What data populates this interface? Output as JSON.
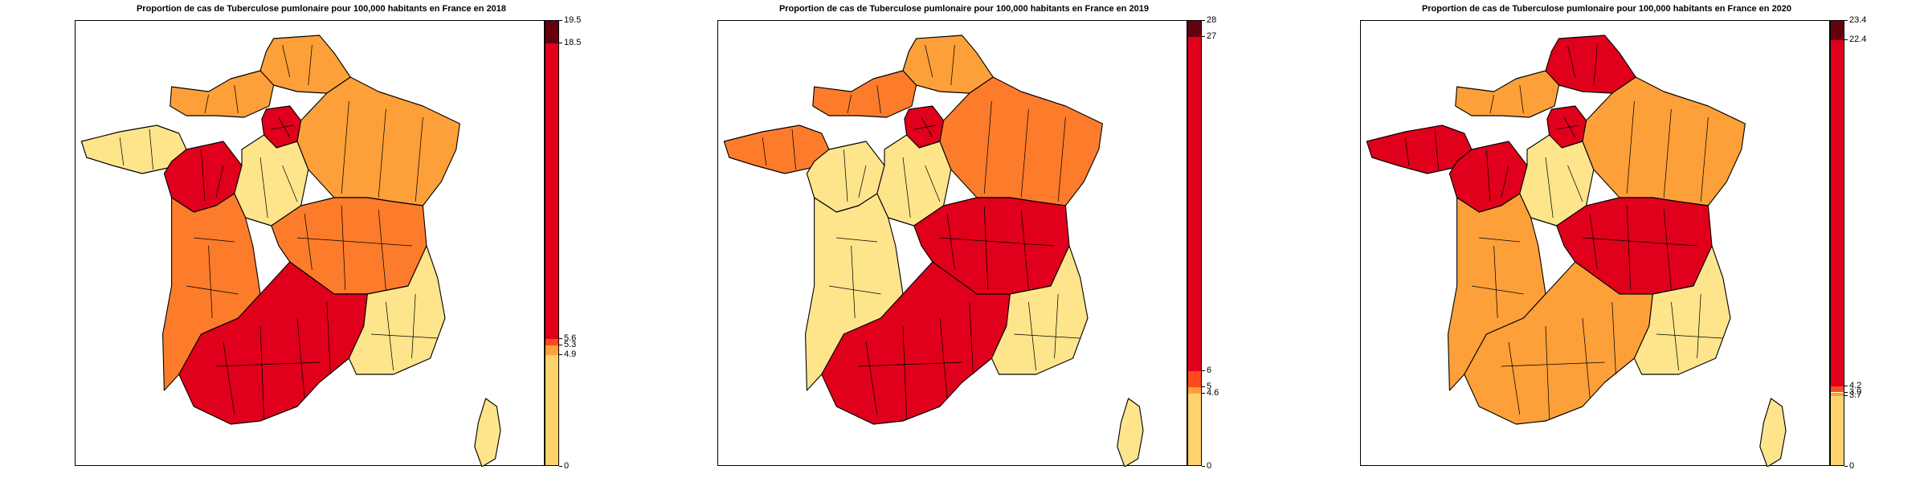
{
  "palette": {
    "dark_red": "#67000d",
    "red": "#e0001b",
    "orange_red": "#fb4a1e",
    "dark_orange": "#fd7c2c",
    "orange": "#fda039",
    "light_orange": "#fec65c",
    "pale_yellow": "#fee58c",
    "outline": "#000000"
  },
  "maps": [
    {
      "title": "Proportion de cas de Tuberculose pumlonaire pour 100,000 habitants en France en 2018",
      "legend": {
        "min": 0,
        "max": 19.5,
        "breaks": [
          {
            "from": 0,
            "to": 4.9,
            "color": "#fed36c"
          },
          {
            "from": 4.9,
            "to": 5.3,
            "color": "#fda039"
          },
          {
            "from": 5.3,
            "to": 5.6,
            "color": "#fb4a1e"
          },
          {
            "from": 5.6,
            "to": 18.5,
            "color": "#e0001b"
          },
          {
            "from": 18.5,
            "to": 19.5,
            "color": "#67000d"
          }
        ],
        "tick_labels": [
          "19.5",
          "18.5",
          "5.6",
          "5.3",
          "4.9",
          "0"
        ],
        "tick_values": [
          19.5,
          18.5,
          5.6,
          5.3,
          4.9,
          0
        ]
      },
      "regions": {
        "north": "#fda039",
        "paris": "#e0001b",
        "brittany": "#fee58c",
        "normandy": "#fda039",
        "west_center": "#e0001b",
        "center": "#fee58c",
        "east": "#fda039",
        "southwest": "#fd7c2c",
        "south": "#e0001b",
        "southeast": "#fee58c",
        "centre_east": "#fd7c2c",
        "corsica": "#fee58c"
      }
    },
    {
      "title": "Proportion de cas de Tuberculose pumlonaire pour 100,000 habitants en France en 2019",
      "legend": {
        "min": 0,
        "max": 28,
        "breaks": [
          {
            "from": 0,
            "to": 4.6,
            "color": "#fed36c"
          },
          {
            "from": 4.6,
            "to": 5,
            "color": "#fda039"
          },
          {
            "from": 5,
            "to": 6,
            "color": "#fb4a1e"
          },
          {
            "from": 6,
            "to": 27,
            "color": "#e0001b"
          },
          {
            "from": 27,
            "to": 28,
            "color": "#67000d"
          }
        ],
        "tick_labels": [
          "28",
          "27",
          "6",
          "5",
          "4.6",
          "0"
        ],
        "tick_values": [
          28,
          27,
          6,
          5,
          4.6,
          0
        ]
      },
      "regions": {
        "north": "#fda039",
        "paris": "#e0001b",
        "brittany": "#fd7c2c",
        "normandy": "#fd7c2c",
        "west_center": "#fee58c",
        "center": "#fee58c",
        "east": "#fd7c2c",
        "southwest": "#fee58c",
        "south": "#e0001b",
        "southeast": "#fee58c",
        "centre_east": "#e0001b",
        "corsica": "#fee58c"
      }
    },
    {
      "title": "Proportion de cas de Tuberculose pumlonaire pour 100,000 habitants en France en 2020",
      "legend": {
        "min": 0,
        "max": 23.4,
        "breaks": [
          {
            "from": 0,
            "to": 3.7,
            "color": "#fed36c"
          },
          {
            "from": 3.7,
            "to": 3.9,
            "color": "#fda039"
          },
          {
            "from": 3.9,
            "to": 4.2,
            "color": "#fb4a1e"
          },
          {
            "from": 4.2,
            "to": 22.4,
            "color": "#e0001b"
          },
          {
            "from": 22.4,
            "to": 23.4,
            "color": "#67000d"
          }
        ],
        "tick_labels": [
          "23.4",
          "22.4",
          "4.2",
          "3.9",
          "3.7",
          "0"
        ],
        "tick_values": [
          23.4,
          22.4,
          4.2,
          3.9,
          3.7,
          0
        ]
      },
      "regions": {
        "north": "#e0001b",
        "paris": "#e0001b",
        "brittany": "#e0001b",
        "normandy": "#fda039",
        "west_center": "#e0001b",
        "center": "#fee58c",
        "east": "#fda039",
        "southwest": "#fda039",
        "south": "#fda039",
        "southeast": "#fee58c",
        "centre_east": "#e0001b",
        "corsica": "#fee58c"
      }
    }
  ]
}
